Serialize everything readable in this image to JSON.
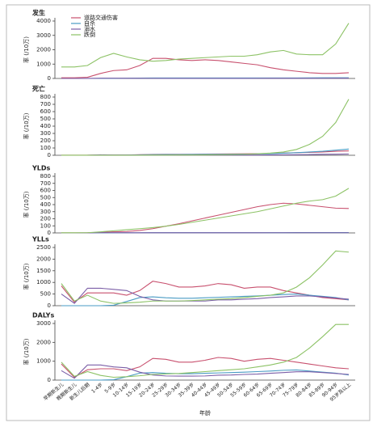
{
  "chart_data": [
    {
      "type": "line",
      "title": "发生",
      "ylabel": "率 (/10万)",
      "ylim": [
        0,
        4000
      ],
      "yticks": [
        0,
        1000,
        2000,
        3000,
        4000
      ],
      "legend": "upper-left",
      "series": [
        {
          "name": "道路交通伤害",
          "color": "#c8506e",
          "values": [
            50,
            50,
            80,
            350,
            550,
            600,
            900,
            1400,
            1400,
            1300,
            1250,
            1300,
            1250,
            1150,
            1050,
            950,
            750,
            600,
            500,
            400,
            350,
            350,
            400
          ]
        },
        {
          "name": "自杀",
          "color": "#4a9bc4",
          "values": [
            0,
            0,
            0,
            0,
            5,
            15,
            25,
            30,
            30,
            30,
            30,
            30,
            30,
            30,
            30,
            30,
            30,
            30,
            35,
            40,
            45,
            50,
            50
          ]
        },
        {
          "name": "溺水",
          "color": "#7b5ea7",
          "values": [
            0,
            0,
            5,
            20,
            15,
            10,
            8,
            7,
            6,
            6,
            6,
            6,
            6,
            6,
            6,
            7,
            8,
            9,
            10,
            12,
            14,
            16,
            18
          ]
        },
        {
          "name": "跌倒",
          "color": "#8cc265",
          "values": [
            800,
            800,
            900,
            1450,
            1750,
            1500,
            1300,
            1200,
            1250,
            1350,
            1400,
            1450,
            1500,
            1550,
            1550,
            1650,
            1850,
            1950,
            1700,
            1650,
            1650,
            2400,
            3850
          ]
        }
      ]
    },
    {
      "type": "line",
      "title": "死亡",
      "ylabel": "率 (/10万)",
      "ylim": [
        0,
        800
      ],
      "yticks": [
        0,
        100,
        200,
        300,
        400,
        500,
        600,
        700,
        800
      ],
      "series": [
        {
          "color": "#c8506e",
          "values": [
            0.5,
            0.5,
            1,
            3,
            4,
            4,
            8,
            12,
            13,
            13,
            14,
            16,
            18,
            19,
            20,
            22,
            25,
            30,
            35,
            40,
            45,
            55,
            60
          ]
        },
        {
          "color": "#4a9bc4",
          "values": [
            0,
            0,
            0,
            0,
            0.2,
            2,
            6,
            9,
            10,
            11,
            12,
            13,
            14,
            15,
            16,
            18,
            22,
            28,
            35,
            45,
            55,
            70,
            85
          ]
        },
        {
          "color": "#7b5ea7",
          "values": [
            0,
            0,
            1,
            6,
            4,
            3,
            3,
            2,
            2,
            2,
            2,
            3,
            3,
            3,
            4,
            4,
            5,
            6,
            8,
            10,
            13,
            15,
            18
          ]
        },
        {
          "color": "#8cc265",
          "values": [
            1,
            1,
            1,
            1,
            1,
            1,
            1,
            2,
            2,
            3,
            4,
            5,
            7,
            10,
            14,
            20,
            30,
            45,
            80,
            150,
            260,
            450,
            770
          ]
        }
      ]
    },
    {
      "type": "line",
      "title": "YLDs",
      "ylabel": "率 (/10万)",
      "ylim": [
        0,
        800
      ],
      "yticks": [
        0,
        100,
        200,
        300,
        400,
        500,
        600,
        700,
        800
      ],
      "series": [
        {
          "color": "#c8506e",
          "values": [
            1,
            1,
            2,
            8,
            15,
            20,
            35,
            60,
            95,
            130,
            170,
            210,
            250,
            290,
            330,
            370,
            400,
            420,
            410,
            390,
            370,
            350,
            345
          ]
        },
        {
          "color": "#4a9bc4",
          "values": [
            0,
            0,
            0,
            0,
            1,
            2,
            3,
            4,
            4,
            4,
            4,
            4,
            4,
            4,
            4,
            4,
            4,
            4,
            5,
            5,
            5,
            5,
            5
          ]
        },
        {
          "color": "#7b5ea7",
          "values": [
            0,
            0,
            1,
            3,
            3,
            2,
            2,
            2,
            2,
            2,
            2,
            2,
            2,
            2,
            2,
            2,
            3,
            3,
            3,
            3,
            3,
            3,
            3
          ]
        },
        {
          "color": "#8cc265",
          "values": [
            2,
            2,
            3,
            15,
            30,
            45,
            60,
            75,
            95,
            120,
            150,
            180,
            210,
            240,
            270,
            300,
            340,
            380,
            420,
            450,
            470,
            520,
            630
          ]
        }
      ]
    },
    {
      "type": "line",
      "title": "YLLs",
      "ylabel": "率 (/10万)",
      "ylim": [
        0,
        2500
      ],
      "yticks": [
        0,
        500,
        1000,
        1500,
        2000,
        2500
      ],
      "series": [
        {
          "color": "#c8506e",
          "values": [
            850,
            150,
            550,
            550,
            550,
            450,
            650,
            1050,
            950,
            800,
            800,
            850,
            950,
            900,
            750,
            800,
            800,
            650,
            550,
            450,
            350,
            300,
            250
          ]
        },
        {
          "color": "#4a9bc4",
          "values": [
            0,
            0,
            0,
            0,
            20,
            180,
            350,
            380,
            340,
            320,
            320,
            340,
            360,
            380,
            400,
            420,
            450,
            480,
            500,
            450,
            400,
            350,
            250
          ]
        },
        {
          "color": "#7b5ea7",
          "values": [
            500,
            100,
            750,
            750,
            700,
            650,
            400,
            250,
            200,
            200,
            200,
            200,
            250,
            250,
            280,
            300,
            350,
            380,
            420,
            420,
            380,
            330,
            280
          ]
        },
        {
          "color": "#8cc265",
          "values": [
            950,
            200,
            450,
            200,
            100,
            120,
            150,
            200,
            200,
            200,
            220,
            250,
            280,
            300,
            350,
            400,
            450,
            550,
            800,
            1200,
            1750,
            2350,
            2300
          ]
        }
      ]
    },
    {
      "type": "line",
      "title": "DALYs",
      "ylabel": "率 (/10万)",
      "xlabel": "年龄",
      "ylim": [
        0,
        3000
      ],
      "yticks": [
        0,
        1000,
        2000,
        3000
      ],
      "categories": [
        "早期新生儿",
        "晚期新生儿",
        "新生儿后期",
        "1-4岁",
        "5-9岁",
        "10-14岁",
        "15-19岁",
        "20-24岁",
        "25-29岁",
        "30-34岁",
        "35-39岁",
        "40-44岁",
        "45-49岁",
        "50-54岁",
        "55-59岁",
        "60-64岁",
        "65-69岁",
        "70-74岁",
        "75-79岁",
        "80-84岁",
        "85-89岁",
        "90-94岁",
        "95岁及以上"
      ],
      "series": [
        {
          "color": "#c8506e",
          "values": [
            850,
            150,
            550,
            600,
            600,
            500,
            700,
            1150,
            1100,
            950,
            950,
            1050,
            1200,
            1150,
            1000,
            1100,
            1150,
            1050,
            950,
            850,
            750,
            650,
            600
          ]
        },
        {
          "color": "#4a9bc4",
          "values": [
            0,
            0,
            0,
            0,
            20,
            180,
            370,
            400,
            360,
            340,
            340,
            360,
            380,
            400,
            420,
            450,
            480,
            520,
            540,
            480,
            420,
            370,
            270
          ]
        },
        {
          "color": "#7b5ea7",
          "values": [
            500,
            100,
            800,
            800,
            700,
            650,
            420,
            270,
            220,
            210,
            210,
            220,
            260,
            270,
            300,
            320,
            360,
            400,
            440,
            440,
            400,
            350,
            300
          ]
        },
        {
          "color": "#8cc265",
          "values": [
            950,
            200,
            450,
            250,
            150,
            180,
            230,
            300,
            330,
            350,
            400,
            450,
            500,
            550,
            600,
            700,
            800,
            950,
            1200,
            1700,
            2300,
            2950,
            2950
          ]
        }
      ]
    }
  ]
}
